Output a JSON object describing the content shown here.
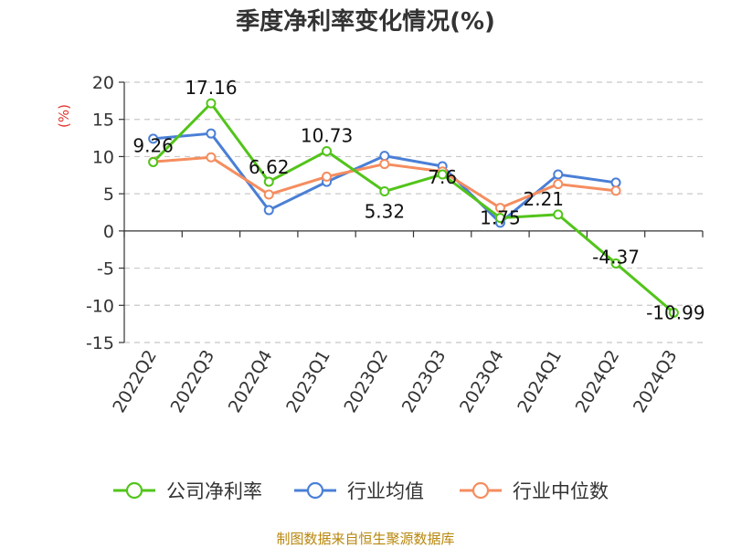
{
  "chart_data": {
    "type": "line",
    "title": "季度净利率变化情况(%)",
    "ylabel": "(%)",
    "categories": [
      "2022Q2",
      "2022Q3",
      "2022Q4",
      "2023Q1",
      "2023Q2",
      "2023Q3",
      "2023Q4",
      "2024Q1",
      "2024Q2",
      "2024Q3"
    ],
    "ylim": [
      -15,
      20
    ],
    "yticks": [
      20,
      15,
      10,
      5,
      0,
      -5,
      -10,
      -15
    ],
    "grid": true,
    "legend_position": "bottom",
    "series": [
      {
        "name": "公司净利率",
        "color": "#52c41a",
        "values": [
          9.26,
          17.16,
          6.62,
          10.73,
          5.32,
          7.6,
          1.75,
          2.21,
          -4.37,
          -10.99
        ],
        "labels": [
          "9.26",
          "17.16",
          "6.62",
          "10.73",
          "5.32",
          "7.6",
          "1.75",
          "2.21",
          "-4.37",
          "-10.99"
        ]
      },
      {
        "name": "行业均值",
        "color": "#4a7fd6",
        "values": [
          12.4,
          13.1,
          2.8,
          6.6,
          10.1,
          8.7,
          1.1,
          7.6,
          6.5,
          null
        ]
      },
      {
        "name": "行业中位数",
        "color": "#f58d5f",
        "values": [
          9.3,
          9.9,
          4.9,
          7.3,
          9.0,
          8.0,
          3.1,
          6.3,
          5.4,
          null
        ]
      }
    ],
    "source": "制图数据来自恒生聚源数据库"
  }
}
